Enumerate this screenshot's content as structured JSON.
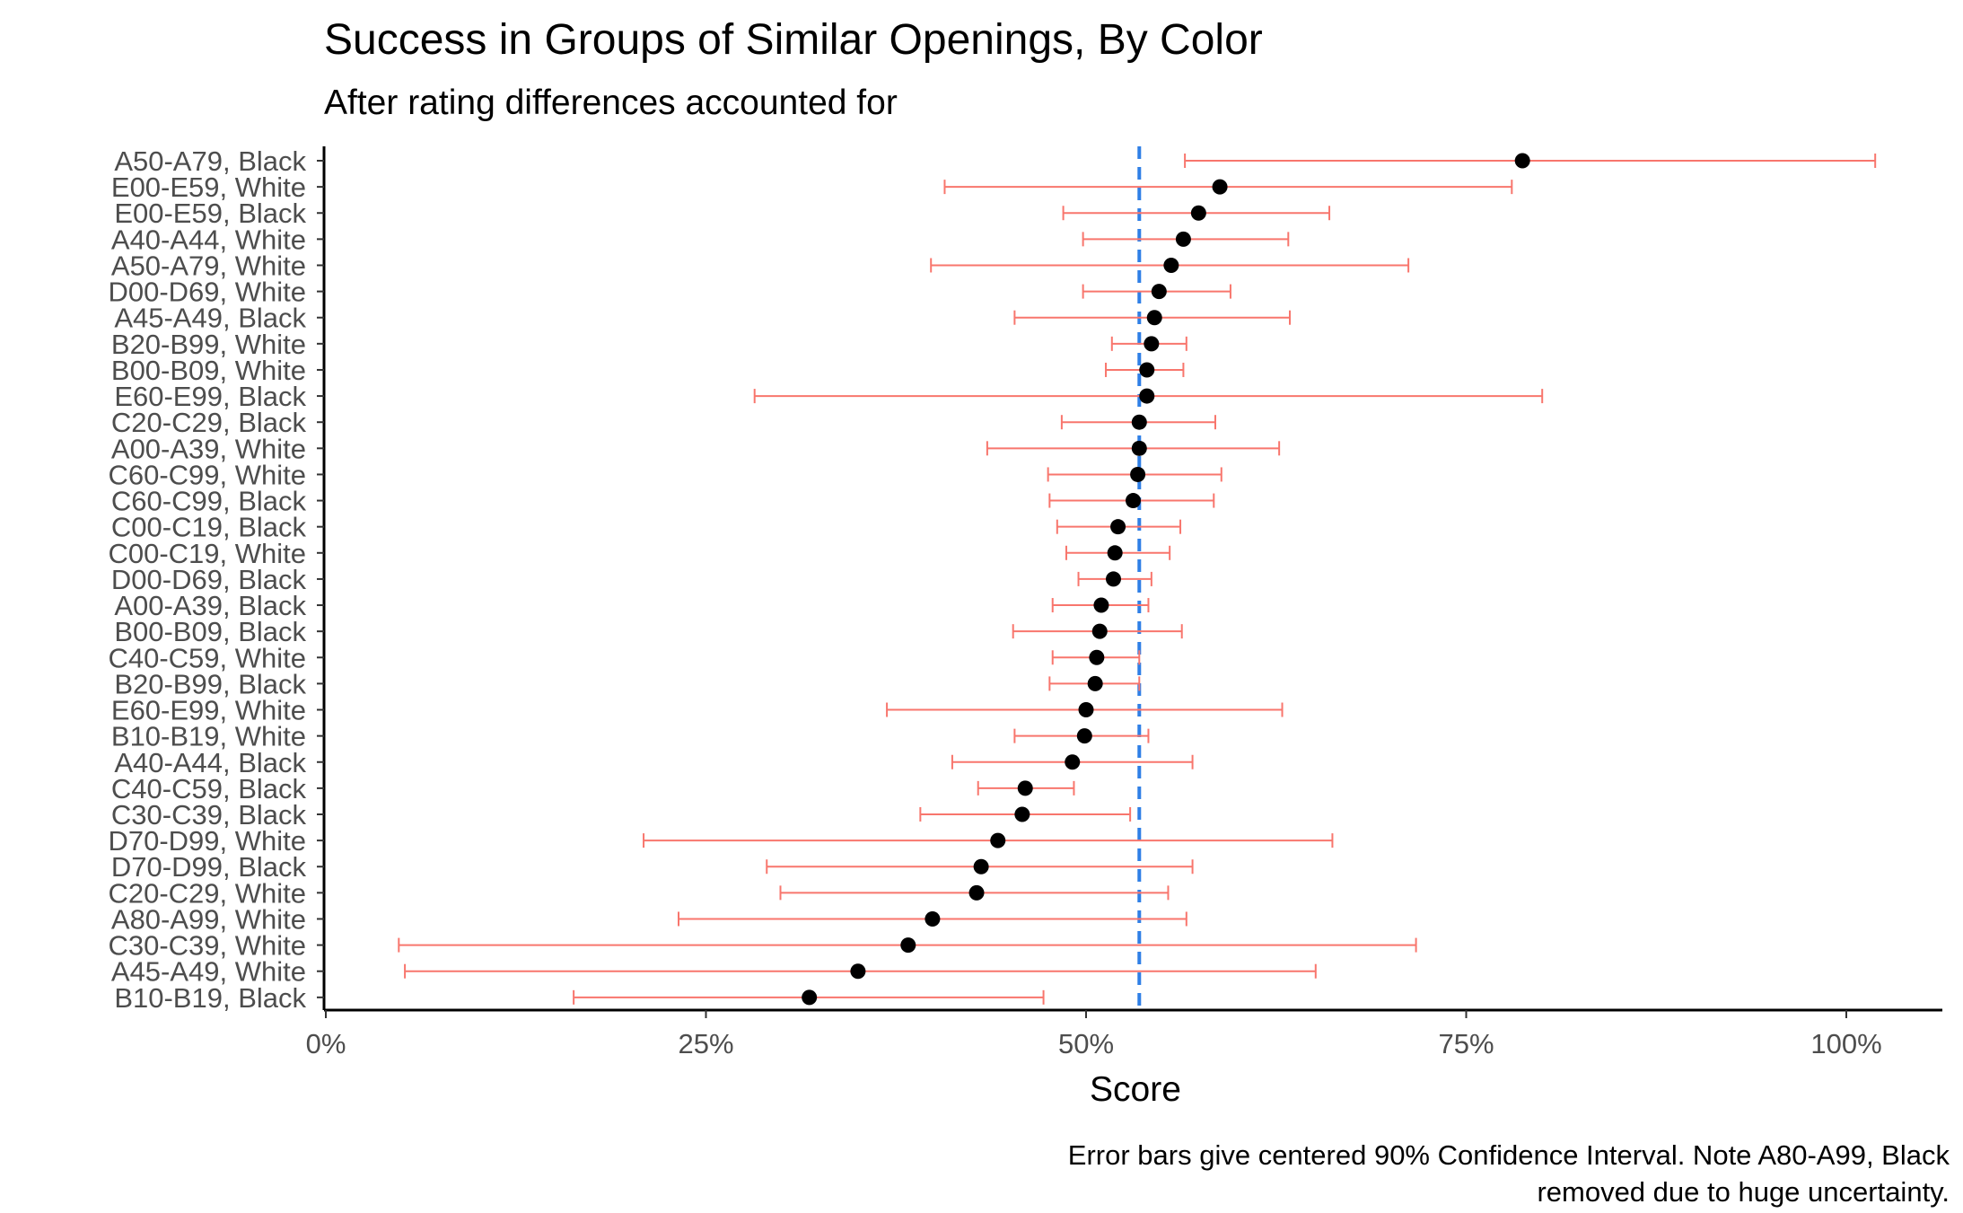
{
  "title": "Success in Groups of Similar Openings, By Color",
  "subtitle": "After rating differences accounted for",
  "caption_line1": "Error bars give centered 90% Confidence Interval. Note A80-A99, Black",
  "caption_line2": "removed due to huge uncertainty.",
  "chart_data": {
    "type": "scatter",
    "title": "Success in Groups of Similar Openings, By Color",
    "subtitle": "After rating differences accounted for",
    "xlabel": "Score",
    "ylabel": "",
    "xlim": [
      0,
      1.06
    ],
    "xticks": [
      0,
      0.25,
      0.5,
      0.75,
      1.0
    ],
    "xtick_labels": [
      "0%",
      "25%",
      "50%",
      "75%",
      "100%"
    ],
    "reference_line": {
      "x": 0.535,
      "style": "dashed",
      "color": "#2F7FE6"
    },
    "point_color": "#000000",
    "errorbar_color": "#F8766D",
    "grid": false,
    "categories": [
      "A50-A79, Black",
      "E00-E59, White",
      "E00-E59, Black",
      "A40-A44, White",
      "A50-A79, White",
      "D00-D69, White",
      "A45-A49, Black",
      "B20-B99, White",
      "B00-B09, White",
      "E60-E99, Black",
      "C20-C29, Black",
      "A00-A39, White",
      "C60-C99, White",
      "C60-C99, Black",
      "C00-C19, Black",
      "C00-C19, White",
      "D00-D69, Black",
      "A00-A39, Black",
      "B00-B09, Black",
      "C40-C59, White",
      "B20-B99, Black",
      "E60-E99, White",
      "B10-B19, White",
      "A40-A44, Black",
      "C40-C59, Black",
      "C30-C39, Black",
      "D70-D99, White",
      "D70-D99, Black",
      "C20-C29, White",
      "A80-A99, White",
      "C30-C39, White",
      "A45-A49, White",
      "B10-B19, Black"
    ],
    "values": [
      0.787,
      0.588,
      0.574,
      0.564,
      0.556,
      0.548,
      0.545,
      0.543,
      0.54,
      0.54,
      0.535,
      0.535,
      0.534,
      0.531,
      0.521,
      0.519,
      0.518,
      0.51,
      0.509,
      0.507,
      0.506,
      0.5,
      0.499,
      0.491,
      0.46,
      0.458,
      0.442,
      0.431,
      0.428,
      0.399,
      0.383,
      0.35,
      0.318
    ],
    "lower": [
      0.565,
      0.407,
      0.485,
      0.498,
      0.398,
      0.498,
      0.453,
      0.517,
      0.513,
      0.282,
      0.484,
      0.435,
      0.475,
      0.476,
      0.481,
      0.487,
      0.495,
      0.478,
      0.452,
      0.478,
      0.476,
      0.369,
      0.453,
      0.412,
      0.429,
      0.391,
      0.209,
      0.29,
      0.299,
      0.232,
      0.048,
      0.052,
      0.163
    ],
    "upper": [
      1.019,
      0.78,
      0.66,
      0.633,
      0.712,
      0.595,
      0.634,
      0.566,
      0.564,
      0.8,
      0.585,
      0.627,
      0.589,
      0.584,
      0.562,
      0.555,
      0.543,
      0.541,
      0.563,
      0.535,
      0.535,
      0.629,
      0.541,
      0.57,
      0.492,
      0.529,
      0.662,
      0.57,
      0.554,
      0.566,
      0.717,
      0.651,
      0.472
    ]
  }
}
